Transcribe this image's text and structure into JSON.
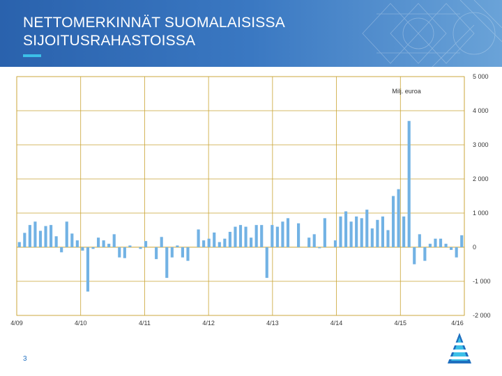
{
  "slide": {
    "title_line1": "NETTOMERKINNÄT SUOMALAISISSA",
    "title_line2": "SIJOITUSRAHASTOISSA",
    "page_number": "3"
  },
  "colors": {
    "header": "#2a62ad",
    "accent": "#3cc0e8",
    "bar": "#72b2e4",
    "grid": "#c9a332"
  },
  "chart_data": {
    "type": "bar",
    "title": "",
    "unit_label": "Milj. euroa",
    "xlabel": "",
    "ylabel": "Milj. euroa",
    "ylim": [
      -2000,
      5000
    ],
    "y_ticks": [
      5000,
      4000,
      3000,
      2000,
      1000,
      0,
      -1000,
      -2000
    ],
    "y_tick_labels": [
      "5 000",
      "4 000",
      "3 000",
      "2 000",
      "1 000",
      "0",
      "-1 000",
      "-2 000"
    ],
    "x_tick_labels": [
      "4/09",
      "4/10",
      "4/11",
      "4/12",
      "4/13",
      "4/14",
      "4/15",
      "4/16"
    ],
    "grid": true,
    "series": [
      {
        "name": "Nettomerkinnät",
        "values": [
          150,
          420,
          650,
          750,
          480,
          620,
          650,
          320,
          -150,
          750,
          400,
          200,
          -100,
          -1300,
          -50,
          280,
          200,
          100,
          380,
          -300,
          -320,
          50,
          0,
          -50,
          180,
          0,
          -350,
          300,
          -900,
          -300,
          50,
          -300,
          -400,
          0,
          520,
          200,
          250,
          430,
          150,
          250,
          450,
          600,
          650,
          600,
          280,
          650,
          650,
          -900,
          650,
          600,
          750,
          850,
          0,
          700,
          0,
          280,
          380,
          -30,
          850,
          0,
          200,
          900,
          1050,
          750,
          900,
          850,
          1100,
          550,
          800,
          900,
          500,
          1500,
          1700,
          900,
          3700,
          -500,
          380,
          -400,
          100,
          250,
          250,
          100,
          -80,
          -300,
          350
        ]
      }
    ]
  }
}
